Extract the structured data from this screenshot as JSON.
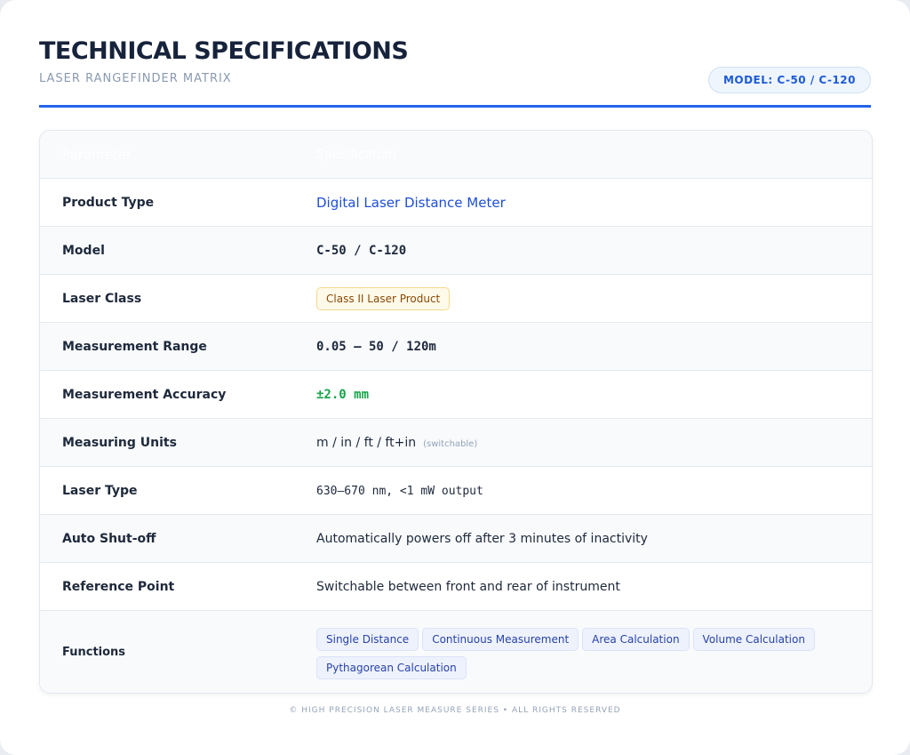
{
  "header": {
    "title": "TECHNICAL SPECIFICATIONS",
    "subtitle": "LASER RANGEFINDER MATRIX",
    "badge": "MODEL: C-50 / C-120"
  },
  "table": {
    "columns": [
      "Parameter",
      "Specification"
    ],
    "rows": [
      [
        "Product Type",
        "Digital Laser Distance Meter"
      ],
      [
        "Model",
        "C-50 / C-120"
      ],
      [
        "Laser Class",
        "Class II Laser Product"
      ],
      [
        "Measurement Range",
        "0.05 – 50 / 120m"
      ],
      [
        "Measurement Accuracy",
        "±2.0 mm"
      ],
      [
        "Measuring Units",
        "m / in / ft / ft+in",
        "(switchable)"
      ],
      [
        "Laser Type",
        "630–670 nm, <1 mW output"
      ],
      [
        "Auto Shut-off",
        "Automatically powers off after 3 minutes of inactivity"
      ],
      [
        "Reference Point",
        "Switchable between front and rear of instrument"
      ],
      [
        "Functions",
        "Single Distance",
        "Continuous Measurement",
        "Area Calculation",
        "Volume Calculation",
        "Pythagorean Calculation"
      ]
    ]
  },
  "footer": "© HIGH PRECISION LASER MEASURE SERIES • ALL RIGHTS RESERVED"
}
